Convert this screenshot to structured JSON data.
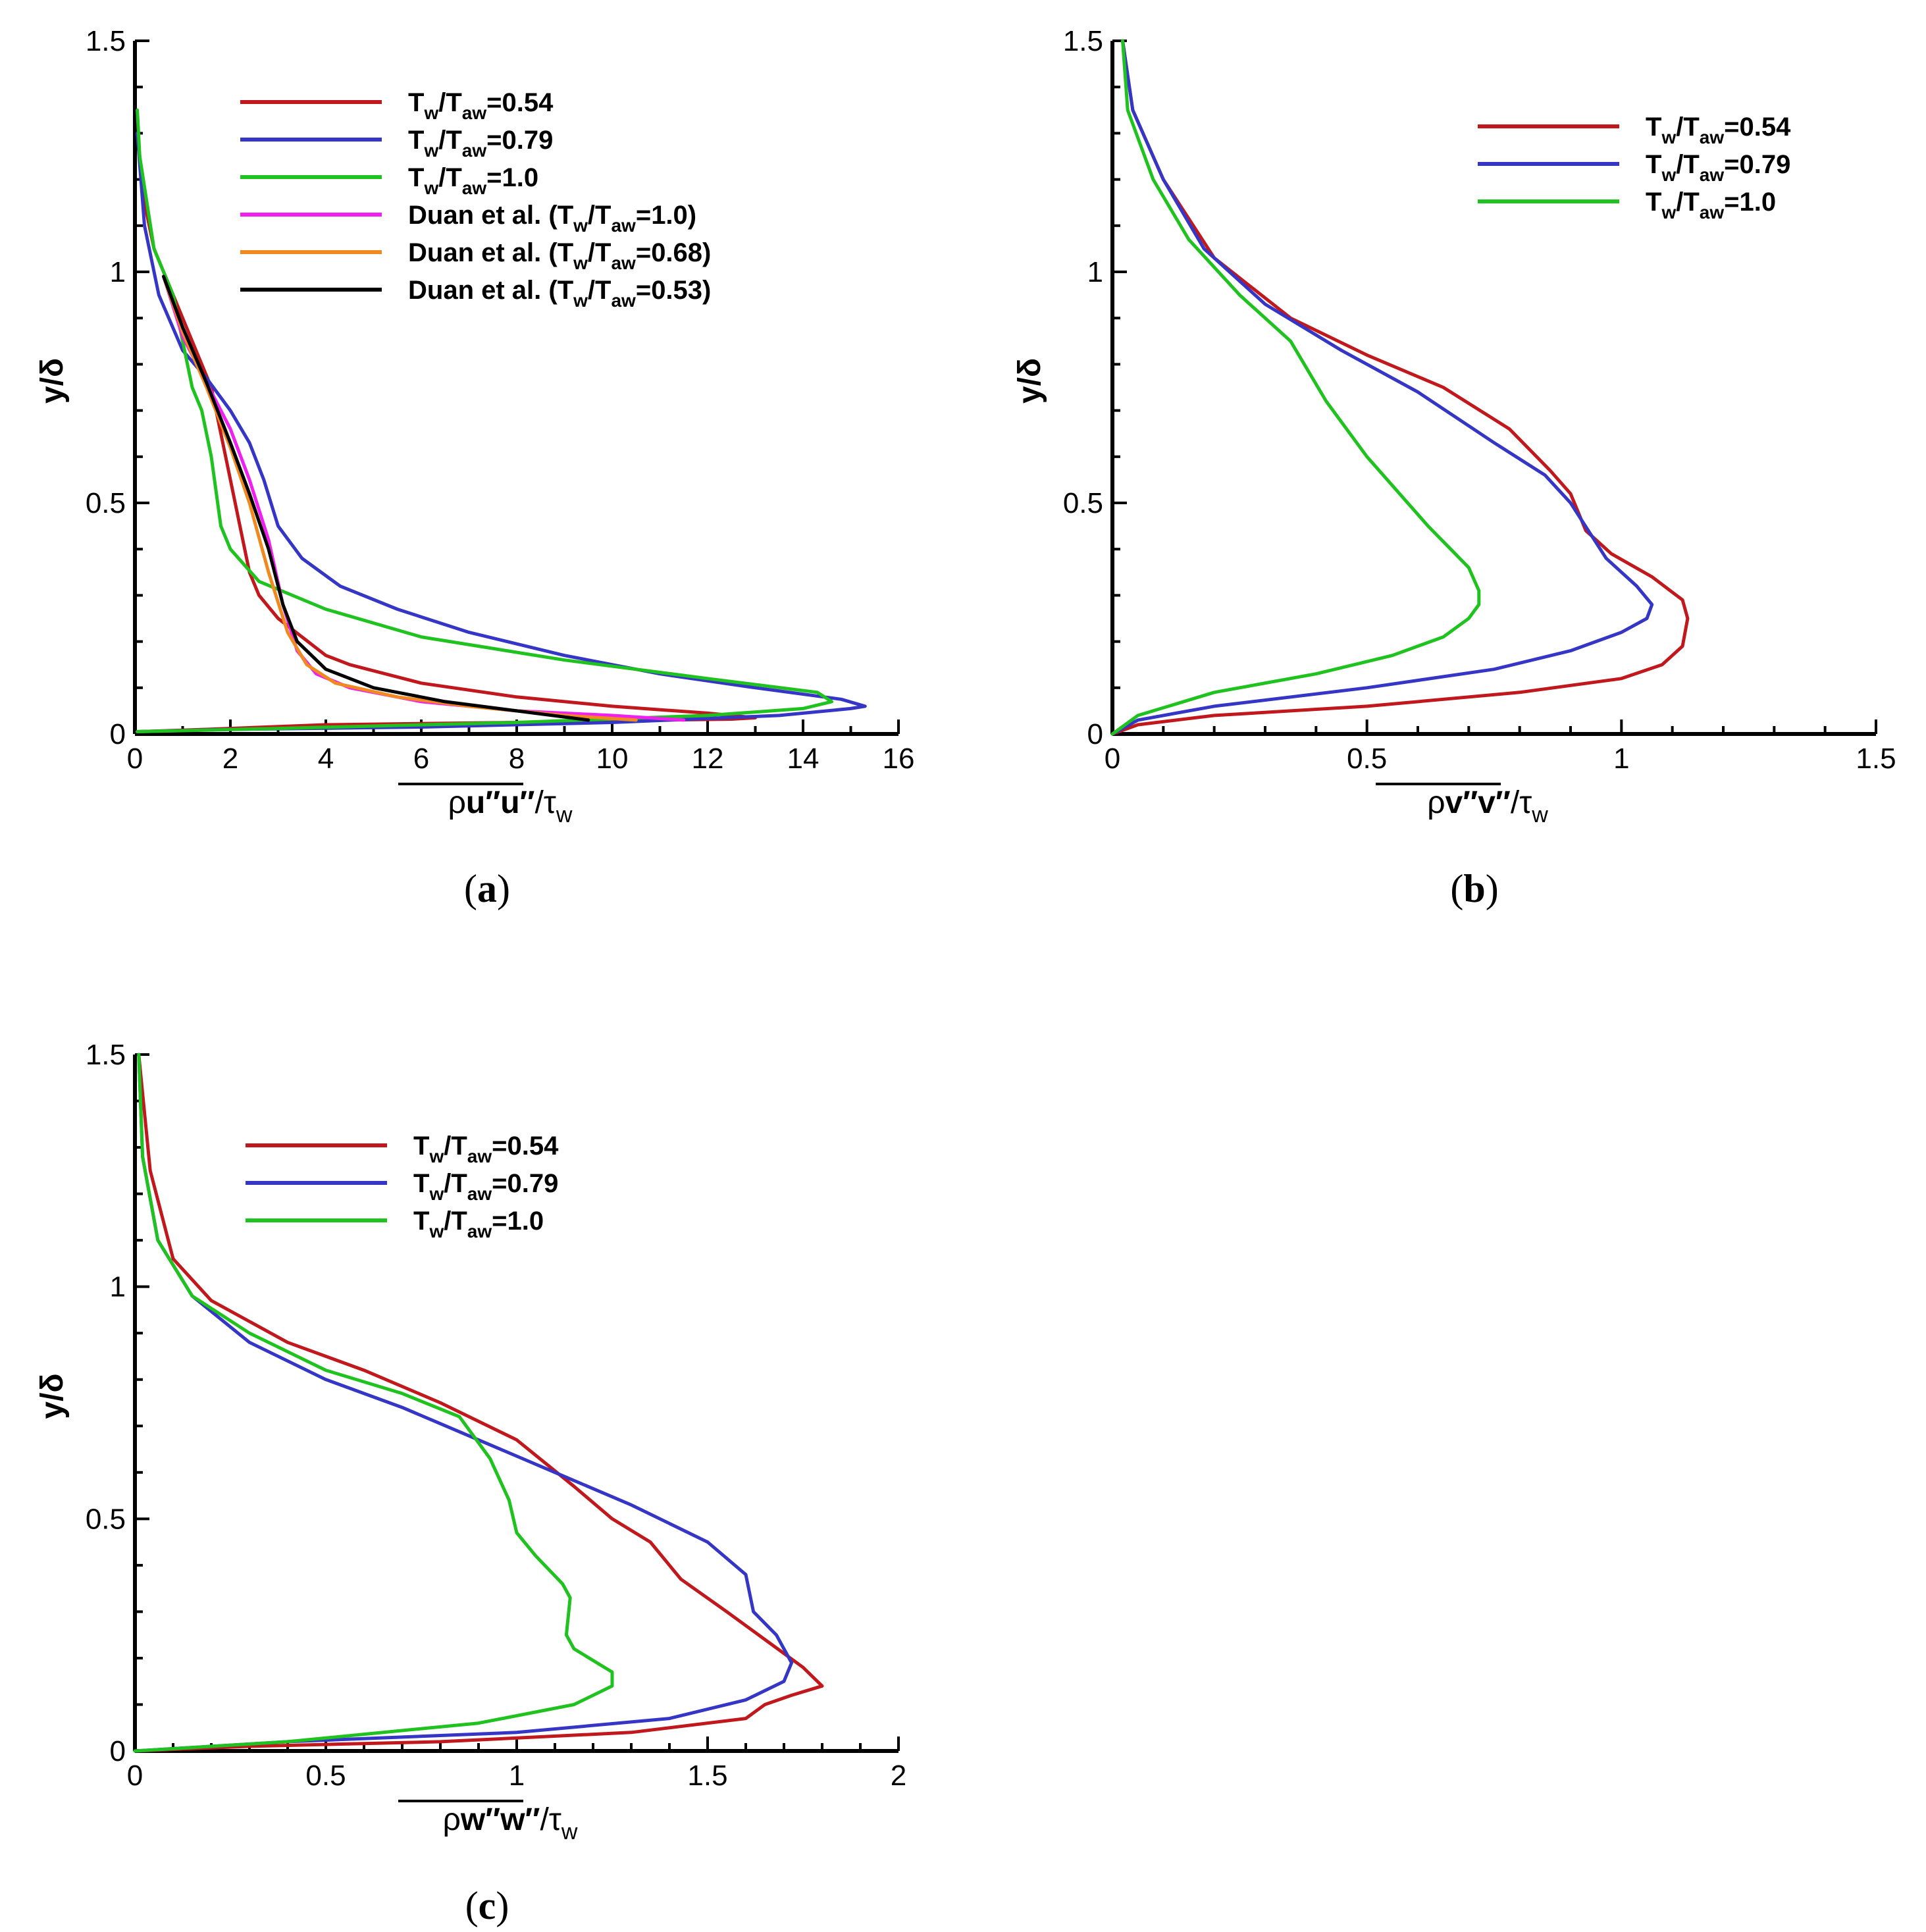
{
  "chart_data": [
    {
      "type": "line",
      "panel": "(a)",
      "xlabel": "ρu″u″/τw",
      "ylabel": "y/δ",
      "xlim": [
        0,
        16
      ],
      "ylim": [
        0,
        1.5
      ],
      "xticks": [
        "0",
        "2",
        "4",
        "6",
        "8",
        "10",
        "12",
        "14",
        "16"
      ],
      "yticks": [
        "0",
        "0.5",
        "1",
        "1.5"
      ],
      "legend_position": "top-right",
      "series": [
        {
          "name": "Tw/Taw=0.54",
          "legend": [
            "T",
            "w",
            "/T",
            "aw",
            "=0.54"
          ],
          "color": "#c0181c",
          "x": [
            0.05,
            1.5,
            4.0,
            8.0,
            11.0,
            12.5,
            13.0,
            12.0,
            10.0,
            8.0,
            6.0,
            4.5,
            4.0,
            3.5,
            3.0,
            2.6,
            2.4,
            2.2,
            1.9,
            1.6,
            1.2,
            0.8,
            0.4,
            0.2,
            0.05
          ],
          "y": [
            0.005,
            0.01,
            0.02,
            0.025,
            0.03,
            0.032,
            0.035,
            0.045,
            0.06,
            0.08,
            0.11,
            0.15,
            0.17,
            0.21,
            0.25,
            0.3,
            0.35,
            0.45,
            0.6,
            0.75,
            0.85,
            0.95,
            1.05,
            1.15,
            1.3
          ]
        },
        {
          "name": "Tw/Taw=0.79",
          "legend": [
            "T",
            "w",
            "/T",
            "aw",
            "=0.79"
          ],
          "color": "#3535c6",
          "x": [
            0.05,
            2.0,
            6.0,
            10.0,
            13.5,
            15.0,
            15.3,
            14.8,
            13.0,
            11.0,
            9.0,
            7.0,
            5.5,
            4.3,
            3.5,
            3.0,
            2.7,
            2.4,
            2.0,
            1.5,
            1.0,
            0.5,
            0.2,
            0.05
          ],
          "y": [
            0.005,
            0.01,
            0.015,
            0.025,
            0.04,
            0.055,
            0.06,
            0.075,
            0.1,
            0.13,
            0.17,
            0.22,
            0.27,
            0.32,
            0.38,
            0.45,
            0.55,
            0.63,
            0.7,
            0.77,
            0.83,
            0.95,
            1.1,
            1.3
          ]
        },
        {
          "name": "Tw/Taw=1.0",
          "legend": [
            "T",
            "w",
            "/T",
            "aw",
            "=1.0"
          ],
          "color": "#1fc21f",
          "x": [
            0.05,
            3.0,
            8.0,
            12.0,
            14.0,
            14.6,
            14.3,
            12.0,
            9.0,
            6.0,
            4.0,
            2.6,
            2.0,
            1.8,
            1.6,
            1.4,
            1.2,
            1.0,
            0.8,
            0.4,
            0.1,
            0.05
          ],
          "y": [
            0.005,
            0.012,
            0.025,
            0.04,
            0.055,
            0.07,
            0.09,
            0.12,
            0.16,
            0.21,
            0.27,
            0.33,
            0.4,
            0.45,
            0.6,
            0.7,
            0.75,
            0.85,
            0.95,
            1.05,
            1.25,
            1.35
          ]
        },
        {
          "name": "Duan et al. (Tw/Taw=1.0)",
          "legend": [
            "Duan et al. (T",
            "w",
            "/T",
            "aw",
            "=1.0)"
          ],
          "color": "#f020f0",
          "x": [
            11.5,
            10.0,
            8.0,
            6.0,
            4.5,
            3.8,
            3.4,
            3.1,
            2.8,
            2.4,
            2.0,
            1.5,
            1.0,
            0.6
          ],
          "y": [
            0.03,
            0.04,
            0.05,
            0.07,
            0.1,
            0.13,
            0.18,
            0.28,
            0.42,
            0.55,
            0.66,
            0.76,
            0.86,
            0.99
          ]
        },
        {
          "name": "Duan et al. (Tw/Taw=0.68)",
          "legend": [
            "Duan et al. (T",
            "w",
            "/T",
            "aw",
            "=0.68)"
          ],
          "color": "#f08a20",
          "x": [
            10.5,
            9.0,
            7.0,
            5.5,
            4.2,
            3.6,
            3.2,
            2.8,
            2.4,
            2.0,
            1.5,
            1.0,
            0.6
          ],
          "y": [
            0.03,
            0.04,
            0.06,
            0.08,
            0.11,
            0.15,
            0.22,
            0.35,
            0.5,
            0.62,
            0.75,
            0.87,
            0.99
          ]
        },
        {
          "name": "Duan et al. (Tw/Taw=0.53)",
          "legend": [
            "Duan et al. (T",
            "w",
            "/T",
            "aw",
            "=0.53)"
          ],
          "color": "#000000",
          "x": [
            9.5,
            8.0,
            6.5,
            5.0,
            4.0,
            3.4,
            3.1,
            2.8,
            2.4,
            2.0,
            1.5,
            1.0,
            0.6
          ],
          "y": [
            0.03,
            0.05,
            0.07,
            0.1,
            0.14,
            0.2,
            0.28,
            0.4,
            0.52,
            0.63,
            0.76,
            0.88,
            0.99
          ]
        }
      ]
    },
    {
      "type": "line",
      "panel": "(b)",
      "xlabel": "ρv″v″/τw",
      "ylabel": "y/δ",
      "xlim": [
        0,
        1.5
      ],
      "ylim": [
        0,
        1.5
      ],
      "xticks": [
        "0",
        "0.5",
        "1",
        "1.5"
      ],
      "yticks": [
        "0",
        "0.5",
        "1",
        "1.5"
      ],
      "legend_position": "top-right",
      "series": [
        {
          "name": "Tw/Taw=0.54",
          "legend": [
            "T",
            "w",
            "/T",
            "aw",
            "=0.54"
          ],
          "color": "#c0181c",
          "x": [
            0.0,
            0.05,
            0.2,
            0.5,
            0.8,
            1.0,
            1.08,
            1.12,
            1.13,
            1.12,
            1.06,
            0.98,
            0.93,
            0.9,
            0.86,
            0.78,
            0.65,
            0.5,
            0.35,
            0.2,
            0.1,
            0.04,
            0.02
          ],
          "y": [
            0.0,
            0.02,
            0.04,
            0.06,
            0.09,
            0.12,
            0.15,
            0.19,
            0.25,
            0.29,
            0.34,
            0.39,
            0.44,
            0.52,
            0.57,
            0.66,
            0.75,
            0.82,
            0.9,
            1.03,
            1.2,
            1.35,
            1.5
          ]
        },
        {
          "name": "Tw/Taw=0.79",
          "legend": [
            "T",
            "w",
            "/T",
            "aw",
            "=0.79"
          ],
          "color": "#3535c6",
          "x": [
            0.0,
            0.05,
            0.2,
            0.5,
            0.75,
            0.9,
            1.0,
            1.05,
            1.06,
            1.03,
            0.97,
            0.9,
            0.85,
            0.75,
            0.6,
            0.45,
            0.3,
            0.18,
            0.1,
            0.04,
            0.02
          ],
          "y": [
            0.0,
            0.03,
            0.06,
            0.1,
            0.14,
            0.18,
            0.22,
            0.25,
            0.28,
            0.32,
            0.38,
            0.5,
            0.56,
            0.63,
            0.74,
            0.83,
            0.93,
            1.05,
            1.2,
            1.35,
            1.5
          ]
        },
        {
          "name": "Tw/Taw=1.0",
          "legend": [
            "T",
            "w",
            "/T",
            "aw",
            "=1.0"
          ],
          "color": "#1fc21f",
          "x": [
            0.0,
            0.05,
            0.2,
            0.4,
            0.55,
            0.65,
            0.7,
            0.72,
            0.72,
            0.7,
            0.62,
            0.5,
            0.42,
            0.35,
            0.25,
            0.15,
            0.08,
            0.03,
            0.02
          ],
          "y": [
            0.0,
            0.04,
            0.09,
            0.13,
            0.17,
            0.21,
            0.25,
            0.28,
            0.31,
            0.36,
            0.45,
            0.6,
            0.72,
            0.85,
            0.95,
            1.07,
            1.2,
            1.35,
            1.5
          ]
        }
      ]
    },
    {
      "type": "line",
      "panel": "(c)",
      "xlabel": "ρw″w″/τw",
      "ylabel": "y/δ",
      "xlim": [
        0,
        2
      ],
      "ylim": [
        0,
        1.5
      ],
      "xticks": [
        "0",
        "0.5",
        "1",
        "1.5",
        "2"
      ],
      "yticks": [
        "0",
        "0.5",
        "1",
        "1.5"
      ],
      "legend_position": "top-left",
      "series": [
        {
          "name": "Tw/Taw=0.54",
          "legend": [
            "T",
            "w",
            "/T",
            "aw",
            "=0.54"
          ],
          "color": "#c0181c",
          "x": [
            0.0,
            0.3,
            0.8,
            1.3,
            1.6,
            1.65,
            1.72,
            1.8,
            1.75,
            1.65,
            1.55,
            1.43,
            1.35,
            1.25,
            1.15,
            1.0,
            0.8,
            0.6,
            0.4,
            0.2,
            0.1,
            0.04,
            0.01
          ],
          "y": [
            0.0,
            0.01,
            0.02,
            0.04,
            0.07,
            0.1,
            0.12,
            0.14,
            0.18,
            0.24,
            0.3,
            0.37,
            0.45,
            0.5,
            0.57,
            0.67,
            0.75,
            0.82,
            0.88,
            0.97,
            1.06,
            1.25,
            1.5
          ]
        },
        {
          "name": "Tw/Taw=0.79",
          "legend": [
            "T",
            "w",
            "/T",
            "aw",
            "=0.79"
          ],
          "color": "#3535c6",
          "x": [
            0.0,
            0.4,
            1.0,
            1.4,
            1.6,
            1.7,
            1.72,
            1.68,
            1.62,
            1.6,
            1.5,
            1.3,
            1.1,
            0.9,
            0.7,
            0.5,
            0.3,
            0.15,
            0.06,
            0.02,
            0.01
          ],
          "y": [
            0.0,
            0.02,
            0.04,
            0.07,
            0.11,
            0.15,
            0.19,
            0.25,
            0.3,
            0.38,
            0.45,
            0.53,
            0.6,
            0.67,
            0.74,
            0.8,
            0.88,
            0.98,
            1.1,
            1.28,
            1.5
          ]
        },
        {
          "name": "Tw/Taw=1.0",
          "legend": [
            "T",
            "w",
            "/T",
            "aw",
            "=1.0"
          ],
          "color": "#1fc21f",
          "x": [
            0.0,
            0.4,
            0.9,
            1.15,
            1.25,
            1.25,
            1.15,
            1.13,
            1.14,
            1.12,
            1.05,
            1.0,
            0.98,
            0.93,
            0.85,
            0.7,
            0.5,
            0.3,
            0.15,
            0.06,
            0.02,
            0.01
          ],
          "y": [
            0.0,
            0.02,
            0.06,
            0.1,
            0.14,
            0.17,
            0.22,
            0.25,
            0.33,
            0.36,
            0.42,
            0.47,
            0.54,
            0.63,
            0.72,
            0.77,
            0.82,
            0.9,
            0.98,
            1.1,
            1.28,
            1.5
          ]
        }
      ]
    }
  ]
}
